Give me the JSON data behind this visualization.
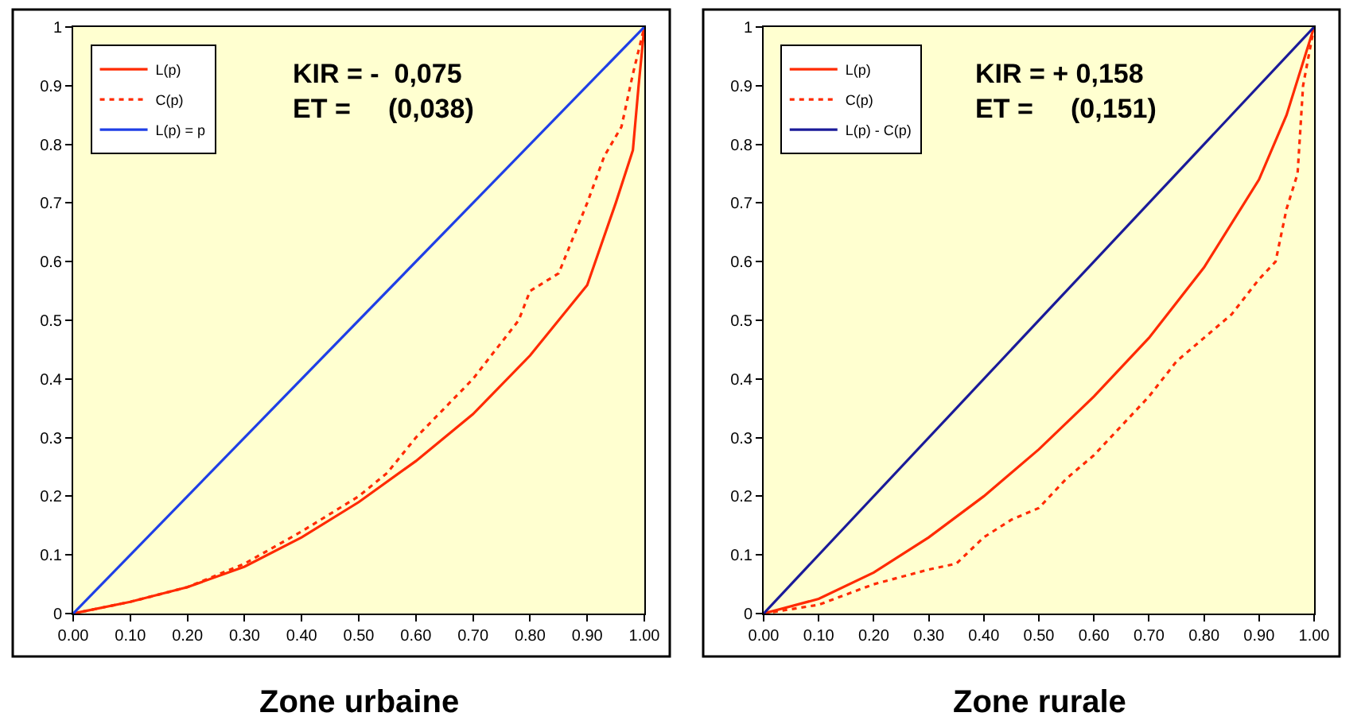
{
  "chart_data": [
    {
      "type": "line",
      "title": "Zone urbaine",
      "annotations": [
        "KIR = -  0,075",
        "ET =     (0,038)"
      ],
      "legend": "top left",
      "grid": false,
      "xlim": [
        0,
        1
      ],
      "ylim": [
        0,
        1
      ],
      "xticks": [
        {
          "value": 0,
          "label": "0.00"
        },
        {
          "value": 0.1,
          "label": "0.10"
        },
        {
          "value": 0.2,
          "label": "0.20"
        },
        {
          "value": 0.3,
          "label": "0.30"
        },
        {
          "value": 0.4,
          "label": "0.40"
        },
        {
          "value": 0.5,
          "label": "0.50"
        },
        {
          "value": 0.6,
          "label": "0.60"
        },
        {
          "value": 0.7,
          "label": "0.70"
        },
        {
          "value": 0.8,
          "label": "0.80"
        },
        {
          "value": 0.9,
          "label": "0.90"
        },
        {
          "value": 1,
          "label": "1.00"
        }
      ],
      "yticks": [
        0,
        0.1,
        0.2,
        0.3,
        0.4,
        0.5,
        0.6,
        0.7,
        0.8,
        0.9,
        1
      ],
      "series": [
        {
          "name": "L(p)",
          "color": "#ff2a00",
          "line_style": "solid",
          "x": [
            0,
            0.1,
            0.2,
            0.3,
            0.4,
            0.5,
            0.6,
            0.7,
            0.8,
            0.9,
            0.95,
            0.98,
            0.99,
            1
          ],
          "values": [
            0,
            0.02,
            0.045,
            0.08,
            0.13,
            0.19,
            0.26,
            0.34,
            0.44,
            0.56,
            0.7,
            0.79,
            0.9,
            1
          ]
        },
        {
          "name": "C(p)",
          "color": "#ff2a00",
          "line_style": "dotted",
          "x": [
            0,
            0.1,
            0.2,
            0.3,
            0.4,
            0.5,
            0.55,
            0.6,
            0.65,
            0.7,
            0.78,
            0.8,
            0.85,
            0.9,
            0.93,
            0.96,
            0.98,
            1
          ],
          "values": [
            0,
            0.02,
            0.045,
            0.085,
            0.14,
            0.2,
            0.24,
            0.3,
            0.35,
            0.4,
            0.5,
            0.55,
            0.58,
            0.7,
            0.78,
            0.83,
            0.92,
            1
          ]
        },
        {
          "name": "L(p) = p",
          "color": "#1f3fe6",
          "line_style": "solid",
          "x": [
            0,
            1
          ],
          "values": [
            0,
            1
          ]
        }
      ]
    },
    {
      "type": "line",
      "title": "Zone rurale",
      "annotations": [
        "KIR = + 0,158",
        "ET =     (0,151)"
      ],
      "legend": "top left",
      "grid": false,
      "xlim": [
        0,
        1
      ],
      "ylim": [
        0,
        1
      ],
      "xticks": [
        {
          "value": 0,
          "label": "0.00"
        },
        {
          "value": 0.1,
          "label": "0.10"
        },
        {
          "value": 0.2,
          "label": "0.20"
        },
        {
          "value": 0.3,
          "label": "0.30"
        },
        {
          "value": 0.4,
          "label": "0.40"
        },
        {
          "value": 0.5,
          "label": "0.50"
        },
        {
          "value": 0.6,
          "label": "0.60"
        },
        {
          "value": 0.7,
          "label": "0.70"
        },
        {
          "value": 0.8,
          "label": "0.80"
        },
        {
          "value": 0.9,
          "label": "0.90"
        },
        {
          "value": 1,
          "label": "1.00"
        }
      ],
      "yticks": [
        0,
        0.1,
        0.2,
        0.3,
        0.4,
        0.5,
        0.6,
        0.7,
        0.8,
        0.9,
        1
      ],
      "series": [
        {
          "name": "L(p)",
          "color": "#ff2a00",
          "line_style": "solid",
          "x": [
            0,
            0.1,
            0.2,
            0.3,
            0.4,
            0.5,
            0.6,
            0.7,
            0.8,
            0.9,
            0.95,
            1
          ],
          "values": [
            0,
            0.025,
            0.07,
            0.13,
            0.2,
            0.28,
            0.37,
            0.47,
            0.59,
            0.74,
            0.85,
            1
          ]
        },
        {
          "name": "C(p)",
          "color": "#ff2a00",
          "line_style": "dotted",
          "x": [
            0,
            0.1,
            0.2,
            0.3,
            0.35,
            0.4,
            0.45,
            0.5,
            0.55,
            0.6,
            0.65,
            0.7,
            0.75,
            0.8,
            0.85,
            0.9,
            0.93,
            0.95,
            0.97,
            0.98,
            1
          ],
          "values": [
            0,
            0.015,
            0.05,
            0.075,
            0.085,
            0.13,
            0.16,
            0.18,
            0.23,
            0.27,
            0.32,
            0.37,
            0.43,
            0.47,
            0.51,
            0.57,
            0.6,
            0.69,
            0.75,
            0.9,
            1
          ]
        },
        {
          "name": "L(p) - C(p)",
          "color": "#1a1a99",
          "line_style": "solid",
          "x": [
            0,
            1
          ],
          "values": [
            0,
            1
          ]
        }
      ]
    }
  ]
}
